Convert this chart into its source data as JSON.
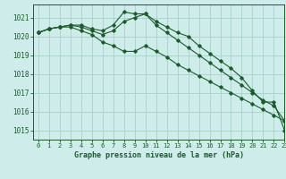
{
  "title": "Graphe pression niveau de la mer (hPa)",
  "background_color": "#ceecea",
  "grid_color": "#aed4ce",
  "line_color": "#1a5c2a",
  "xlim": [
    -0.5,
    23
  ],
  "ylim": [
    1014.5,
    1021.7
  ],
  "yticks": [
    1015,
    1016,
    1017,
    1018,
    1019,
    1020,
    1021
  ],
  "xticks": [
    0,
    1,
    2,
    3,
    4,
    5,
    6,
    7,
    8,
    9,
    10,
    11,
    12,
    13,
    14,
    15,
    16,
    17,
    18,
    19,
    20,
    21,
    22,
    23
  ],
  "series": [
    [
      1020.2,
      1020.4,
      1020.5,
      1020.6,
      1020.6,
      1020.4,
      1020.3,
      1020.6,
      1021.3,
      1021.2,
      1021.2,
      1020.8,
      1020.5,
      1020.2,
      1020.0,
      1019.5,
      1019.1,
      1018.7,
      1018.3,
      1017.8,
      1017.1,
      1016.5,
      1016.5,
      1015.0
    ],
    [
      1020.2,
      1020.4,
      1020.5,
      1020.6,
      1020.5,
      1020.3,
      1020.1,
      1020.3,
      1020.8,
      1021.0,
      1021.2,
      1020.6,
      1020.2,
      1019.8,
      1019.4,
      1019.0,
      1018.6,
      1018.2,
      1017.8,
      1017.4,
      1017.0,
      1016.6,
      1016.3,
      1015.5
    ],
    [
      1020.2,
      1020.4,
      1020.5,
      1020.5,
      1020.3,
      1020.1,
      1019.7,
      1019.5,
      1019.2,
      1019.2,
      1019.5,
      1019.2,
      1018.9,
      1018.5,
      1018.2,
      1017.9,
      1017.6,
      1017.3,
      1017.0,
      1016.7,
      1016.4,
      1016.1,
      1015.8,
      1015.5
    ]
  ]
}
